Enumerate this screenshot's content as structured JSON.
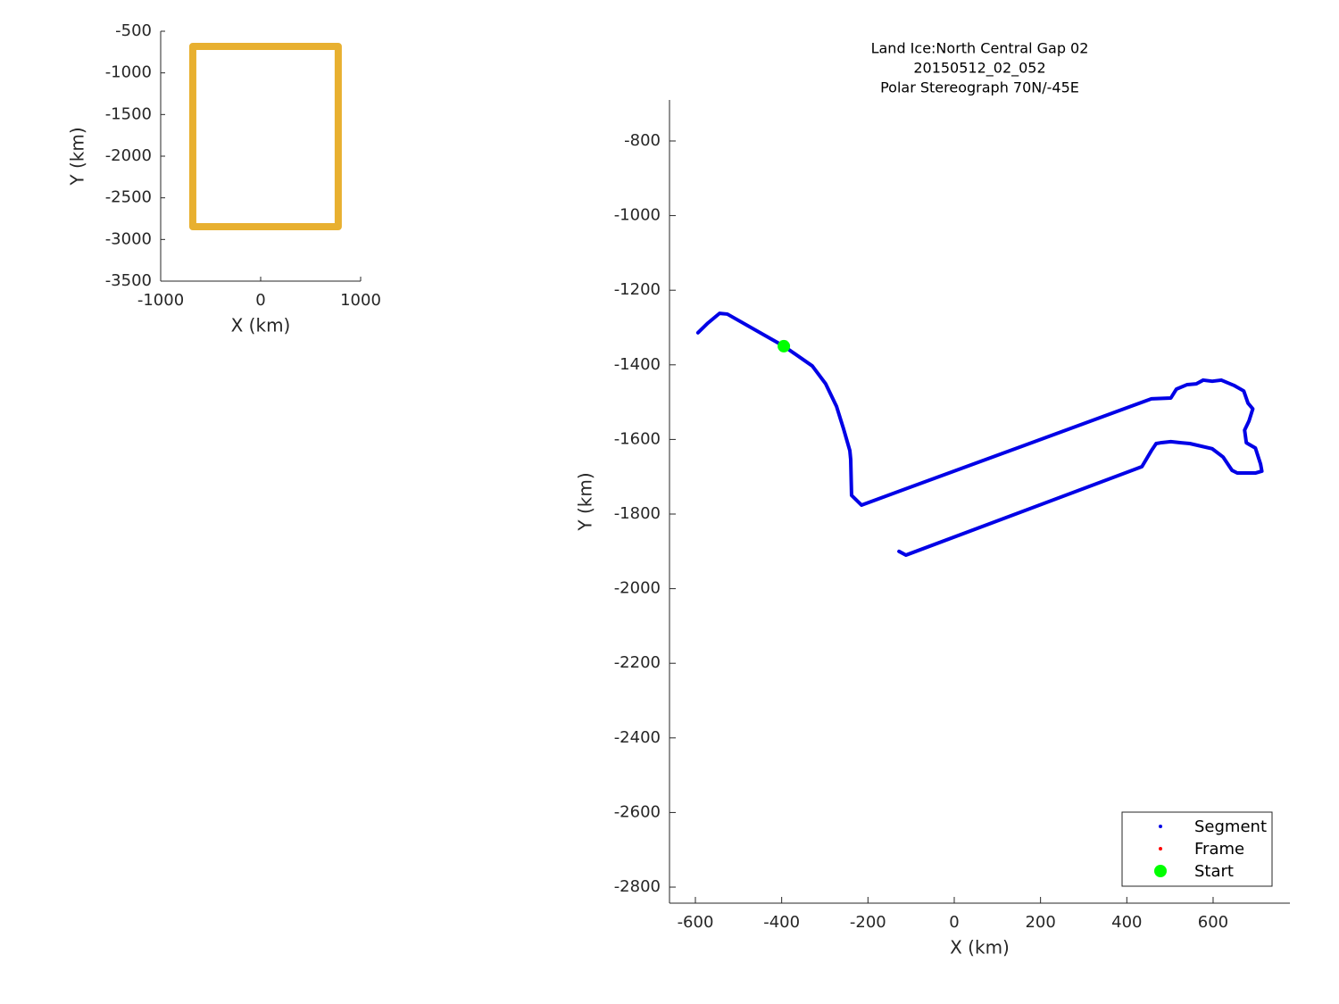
{
  "chart_data": [
    {
      "type": "line",
      "xlabel": "X (km)",
      "ylabel": "Y (km)",
      "xlim": [
        -1000,
        1000
      ],
      "xticks": [
        -1000,
        0,
        1000
      ],
      "ylim": [
        -3500,
        -500
      ],
      "yticks": [
        -3500,
        -3000,
        -2500,
        -2000,
        -1500,
        -1000,
        -500
      ],
      "series": [
        {
          "color": "#e8b030",
          "x": [
            -679,
            776,
            776,
            -679,
            -679
          ],
          "values": [
            -682,
            -682,
            -2847,
            -2847,
            -682
          ]
        }
      ]
    },
    {
      "type": "line",
      "title": [
        "Land Ice:North Central Gap 02",
        "20150512_02_052",
        "Polar Stereograph 70N/-45E"
      ],
      "xlabel": "X (km)",
      "ylabel": "Y (km)",
      "xlim": [
        -660,
        778
      ],
      "xticks": [
        -600,
        -400,
        -200,
        0,
        200,
        400,
        600
      ],
      "ylim": [
        -2843,
        -690
      ],
      "yticks": [
        -2800,
        -2600,
        -2400,
        -2200,
        -2000,
        -1800,
        -1600,
        -1400,
        -1200,
        -1000,
        -800
      ],
      "legend": "southeast",
      "series": [
        {
          "name": "Segment",
          "color": "#0000e6",
          "x": [
            -594,
            -571,
            -544,
            -526,
            -395,
            -329,
            -298,
            -273,
            -257,
            -242,
            -240,
            -238,
            -215,
            457,
            502,
            515,
            540,
            561,
            577,
            598,
            619,
            648,
            671,
            681,
            692,
            683,
            673,
            677,
            698,
            710,
            713,
            698,
            656,
            644,
            623,
            598,
            546,
            526,
            502,
            478,
            468,
            457,
            435,
            -112,
            -128
          ],
          "values": [
            -1314,
            -1288,
            -1262,
            -1264,
            -1350,
            -1403,
            -1451,
            -1511,
            -1570,
            -1630,
            -1654,
            -1750,
            -1776,
            -1491,
            -1489,
            -1465,
            -1453,
            -1451,
            -1441,
            -1444,
            -1441,
            -1455,
            -1470,
            -1503,
            -1518,
            -1551,
            -1575,
            -1609,
            -1623,
            -1666,
            -1685,
            -1690,
            -1690,
            -1683,
            -1647,
            -1625,
            -1611,
            -1609,
            -1606,
            -1609,
            -1611,
            -1630,
            -1673,
            -1910,
            -1900
          ]
        },
        {
          "name": "Frame",
          "color": "#ff0000",
          "x": [],
          "values": []
        },
        {
          "name": "Start",
          "color": "#00ff00",
          "x": [
            -395
          ],
          "values": [
            -1350
          ]
        }
      ]
    }
  ]
}
